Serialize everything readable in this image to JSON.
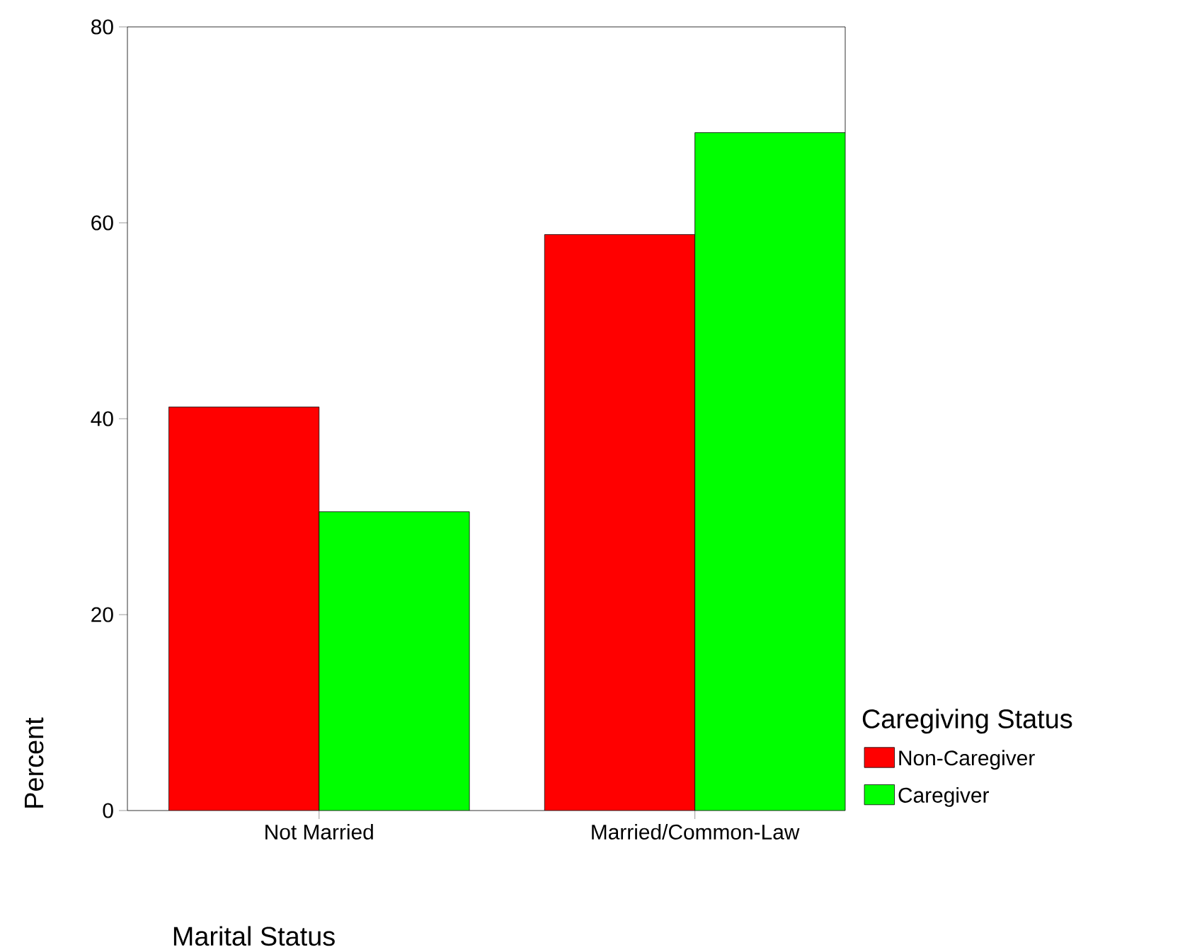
{
  "chart_data": {
    "type": "bar",
    "xlabel": "Marital Status",
    "ylabel": "Percent",
    "legend_title": "Caregiving Status",
    "categories": [
      "Not Married",
      "Married/Common-Law"
    ],
    "series": [
      {
        "name": "Non-Caregiver",
        "color": "#ff0000",
        "values": [
          41.2,
          58.8
        ]
      },
      {
        "name": "Caregiver",
        "color": "#00ff00",
        "values": [
          30.5,
          69.2
        ]
      }
    ],
    "ylim": [
      0,
      80
    ],
    "yticks": [
      0,
      20,
      40,
      60,
      80
    ],
    "grid": false,
    "legend": "right"
  }
}
